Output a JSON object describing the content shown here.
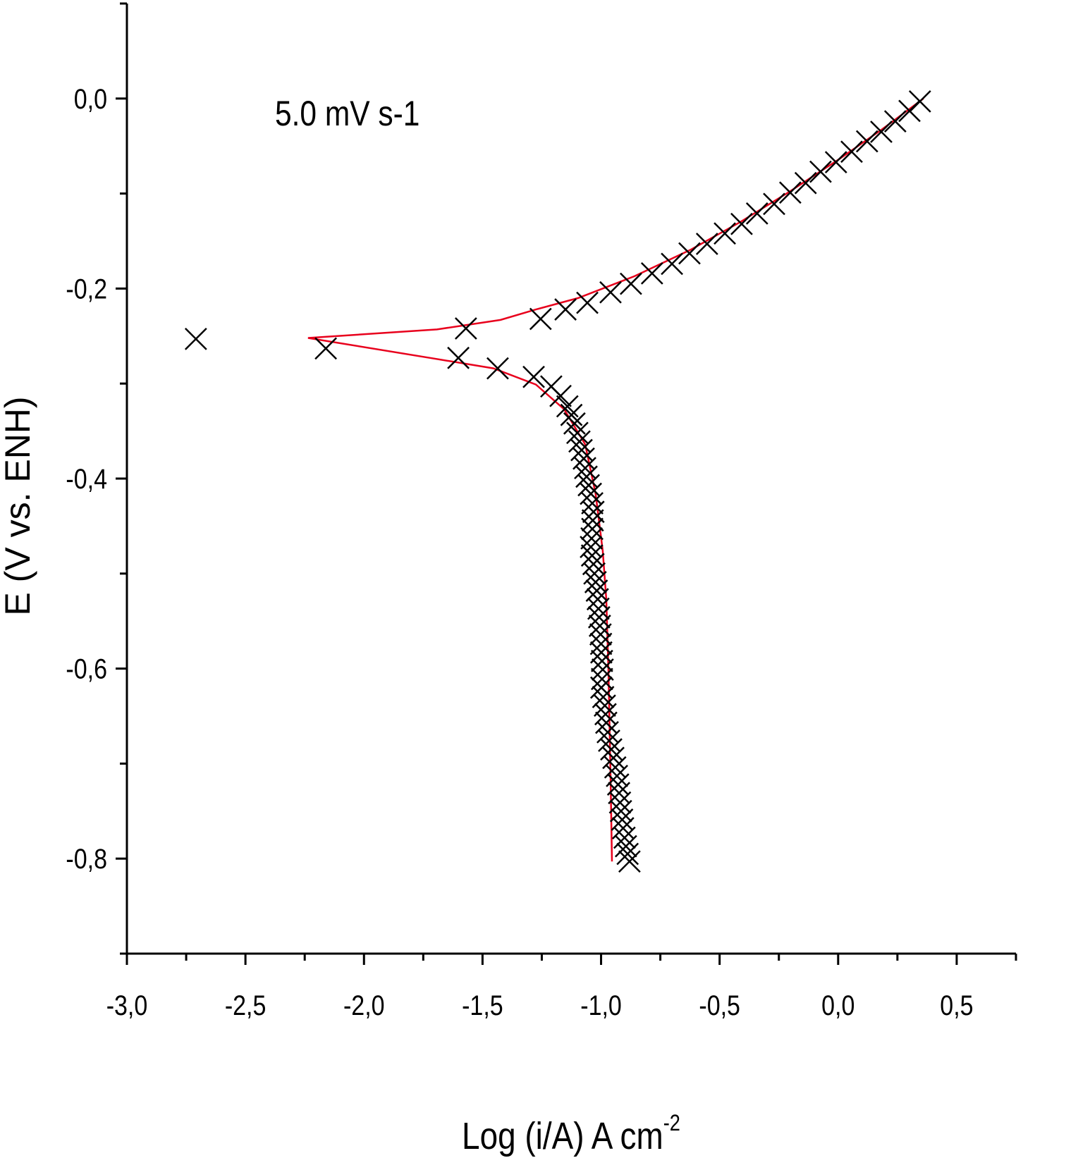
{
  "chart_data": {
    "type": "scatter",
    "annotation": "5.0 mV s-1",
    "xlabel": "Log (i/A) A cm",
    "xlabel_superscript": "-2",
    "ylabel": "E (V vs. ENH)",
    "xlim": [
      -3.0,
      0.75
    ],
    "ylim": [
      -0.9,
      0.1
    ],
    "xticks": [
      -3.0,
      -2.5,
      -2.0,
      -1.5,
      -1.0,
      -0.5,
      0.0,
      0.5
    ],
    "xtick_labels": [
      "-3,0",
      "-2,5",
      "-2,0",
      "-1,5",
      "-1,0",
      "-0,5",
      "0,0",
      "0,5"
    ],
    "yticks": [
      0.0,
      -0.2,
      -0.4,
      -0.6,
      -0.8
    ],
    "ytick_labels": [
      "0,0",
      "-0,2",
      "-0,4",
      "-0,6",
      "-0,8"
    ],
    "grid": false,
    "series": [
      {
        "name": "experimental",
        "marker": "x",
        "color": "#000000",
        "points": [
          [
            -2.709,
            -0.253
          ],
          [
            -2.161,
            -0.263
          ],
          [
            -1.57,
            -0.242
          ],
          [
            -1.255,
            -0.232
          ],
          [
            -1.15,
            -0.222
          ],
          [
            -1.058,
            -0.215
          ],
          [
            -0.96,
            -0.204
          ],
          [
            -0.874,
            -0.195
          ],
          [
            -0.785,
            -0.184
          ],
          [
            -0.701,
            -0.174
          ],
          [
            -0.627,
            -0.163
          ],
          [
            -0.553,
            -0.153
          ],
          [
            -0.478,
            -0.142
          ],
          [
            -0.407,
            -0.132
          ],
          [
            -0.342,
            -0.121
          ],
          [
            -0.27,
            -0.111
          ],
          [
            -0.202,
            -0.099
          ],
          [
            -0.137,
            -0.089
          ],
          [
            -0.074,
            -0.077
          ],
          [
            -0.009,
            -0.067
          ],
          [
            0.057,
            -0.056
          ],
          [
            0.122,
            -0.045
          ],
          [
            0.182,
            -0.035
          ],
          [
            0.241,
            -0.024
          ],
          [
            0.301,
            -0.013
          ],
          [
            0.345,
            -0.003
          ],
          [
            -1.602,
            -0.273
          ],
          [
            -1.436,
            -0.284
          ],
          [
            -1.284,
            -0.293
          ],
          [
            -1.21,
            -0.303
          ],
          [
            -1.171,
            -0.313
          ],
          [
            -1.142,
            -0.324
          ],
          [
            -1.125,
            -0.333
          ],
          [
            -1.112,
            -0.342
          ],
          [
            -1.1,
            -0.352
          ],
          [
            -1.091,
            -0.361
          ],
          [
            -1.082,
            -0.37
          ],
          [
            -1.073,
            -0.379
          ],
          [
            -1.067,
            -0.389
          ],
          [
            -1.061,
            -0.398
          ],
          [
            -1.052,
            -0.407
          ],
          [
            -1.043,
            -0.416
          ],
          [
            -1.037,
            -0.426
          ],
          [
            -1.032,
            -0.435
          ],
          [
            -1.035,
            -0.444
          ],
          [
            -1.037,
            -0.453
          ],
          [
            -1.04,
            -0.463
          ],
          [
            -1.043,
            -0.472
          ],
          [
            -1.038,
            -0.481
          ],
          [
            -1.032,
            -0.49
          ],
          [
            -1.028,
            -0.5
          ],
          [
            -1.023,
            -0.509
          ],
          [
            -1.018,
            -0.518
          ],
          [
            -1.014,
            -0.527
          ],
          [
            -1.011,
            -0.537
          ],
          [
            -1.008,
            -0.546
          ],
          [
            -1.005,
            -0.555
          ],
          [
            -1.002,
            -0.564
          ],
          [
            -1.0,
            -0.574
          ],
          [
            -0.999,
            -0.583
          ],
          [
            -0.996,
            -0.592
          ],
          [
            -0.993,
            -0.601
          ],
          [
            -0.996,
            -0.611
          ],
          [
            -0.999,
            -0.62
          ],
          [
            -0.991,
            -0.63
          ],
          [
            -0.984,
            -0.639
          ],
          [
            -0.981,
            -0.648
          ],
          [
            -0.978,
            -0.657
          ],
          [
            -0.972,
            -0.667
          ],
          [
            -0.966,
            -0.676
          ],
          [
            -0.957,
            -0.685
          ],
          [
            -0.948,
            -0.694
          ],
          [
            -0.94,
            -0.704
          ],
          [
            -0.933,
            -0.713
          ],
          [
            -0.928,
            -0.722
          ],
          [
            -0.924,
            -0.731
          ],
          [
            -0.92,
            -0.741
          ],
          [
            -0.916,
            -0.75
          ],
          [
            -0.911,
            -0.759
          ],
          [
            -0.907,
            -0.768
          ],
          [
            -0.901,
            -0.778
          ],
          [
            -0.895,
            -0.787
          ],
          [
            -0.888,
            -0.795
          ],
          [
            -0.88,
            -0.803
          ]
        ]
      },
      {
        "name": "fit",
        "marker": "line",
        "color": "#e8001c",
        "points": [
          [
            0.36,
            0.0
          ],
          [
            0.182,
            -0.033
          ],
          [
            0.003,
            -0.064
          ],
          [
            -0.205,
            -0.098
          ],
          [
            -0.413,
            -0.13
          ],
          [
            -0.621,
            -0.159
          ],
          [
            -0.859,
            -0.187
          ],
          [
            -1.097,
            -0.21
          ],
          [
            -1.275,
            -0.222
          ],
          [
            -1.424,
            -0.233
          ],
          [
            -1.692,
            -0.243
          ],
          [
            -2.236,
            -0.252
          ],
          [
            -1.721,
            -0.273
          ],
          [
            -1.454,
            -0.284
          ],
          [
            -1.275,
            -0.301
          ],
          [
            -1.156,
            -0.327
          ],
          [
            -1.067,
            -0.364
          ],
          [
            -1.023,
            -0.416
          ],
          [
            -0.993,
            -0.476
          ],
          [
            -0.978,
            -0.527
          ],
          [
            -0.969,
            -0.601
          ],
          [
            -0.96,
            -0.713
          ],
          [
            -0.954,
            -0.803
          ]
        ]
      }
    ]
  }
}
